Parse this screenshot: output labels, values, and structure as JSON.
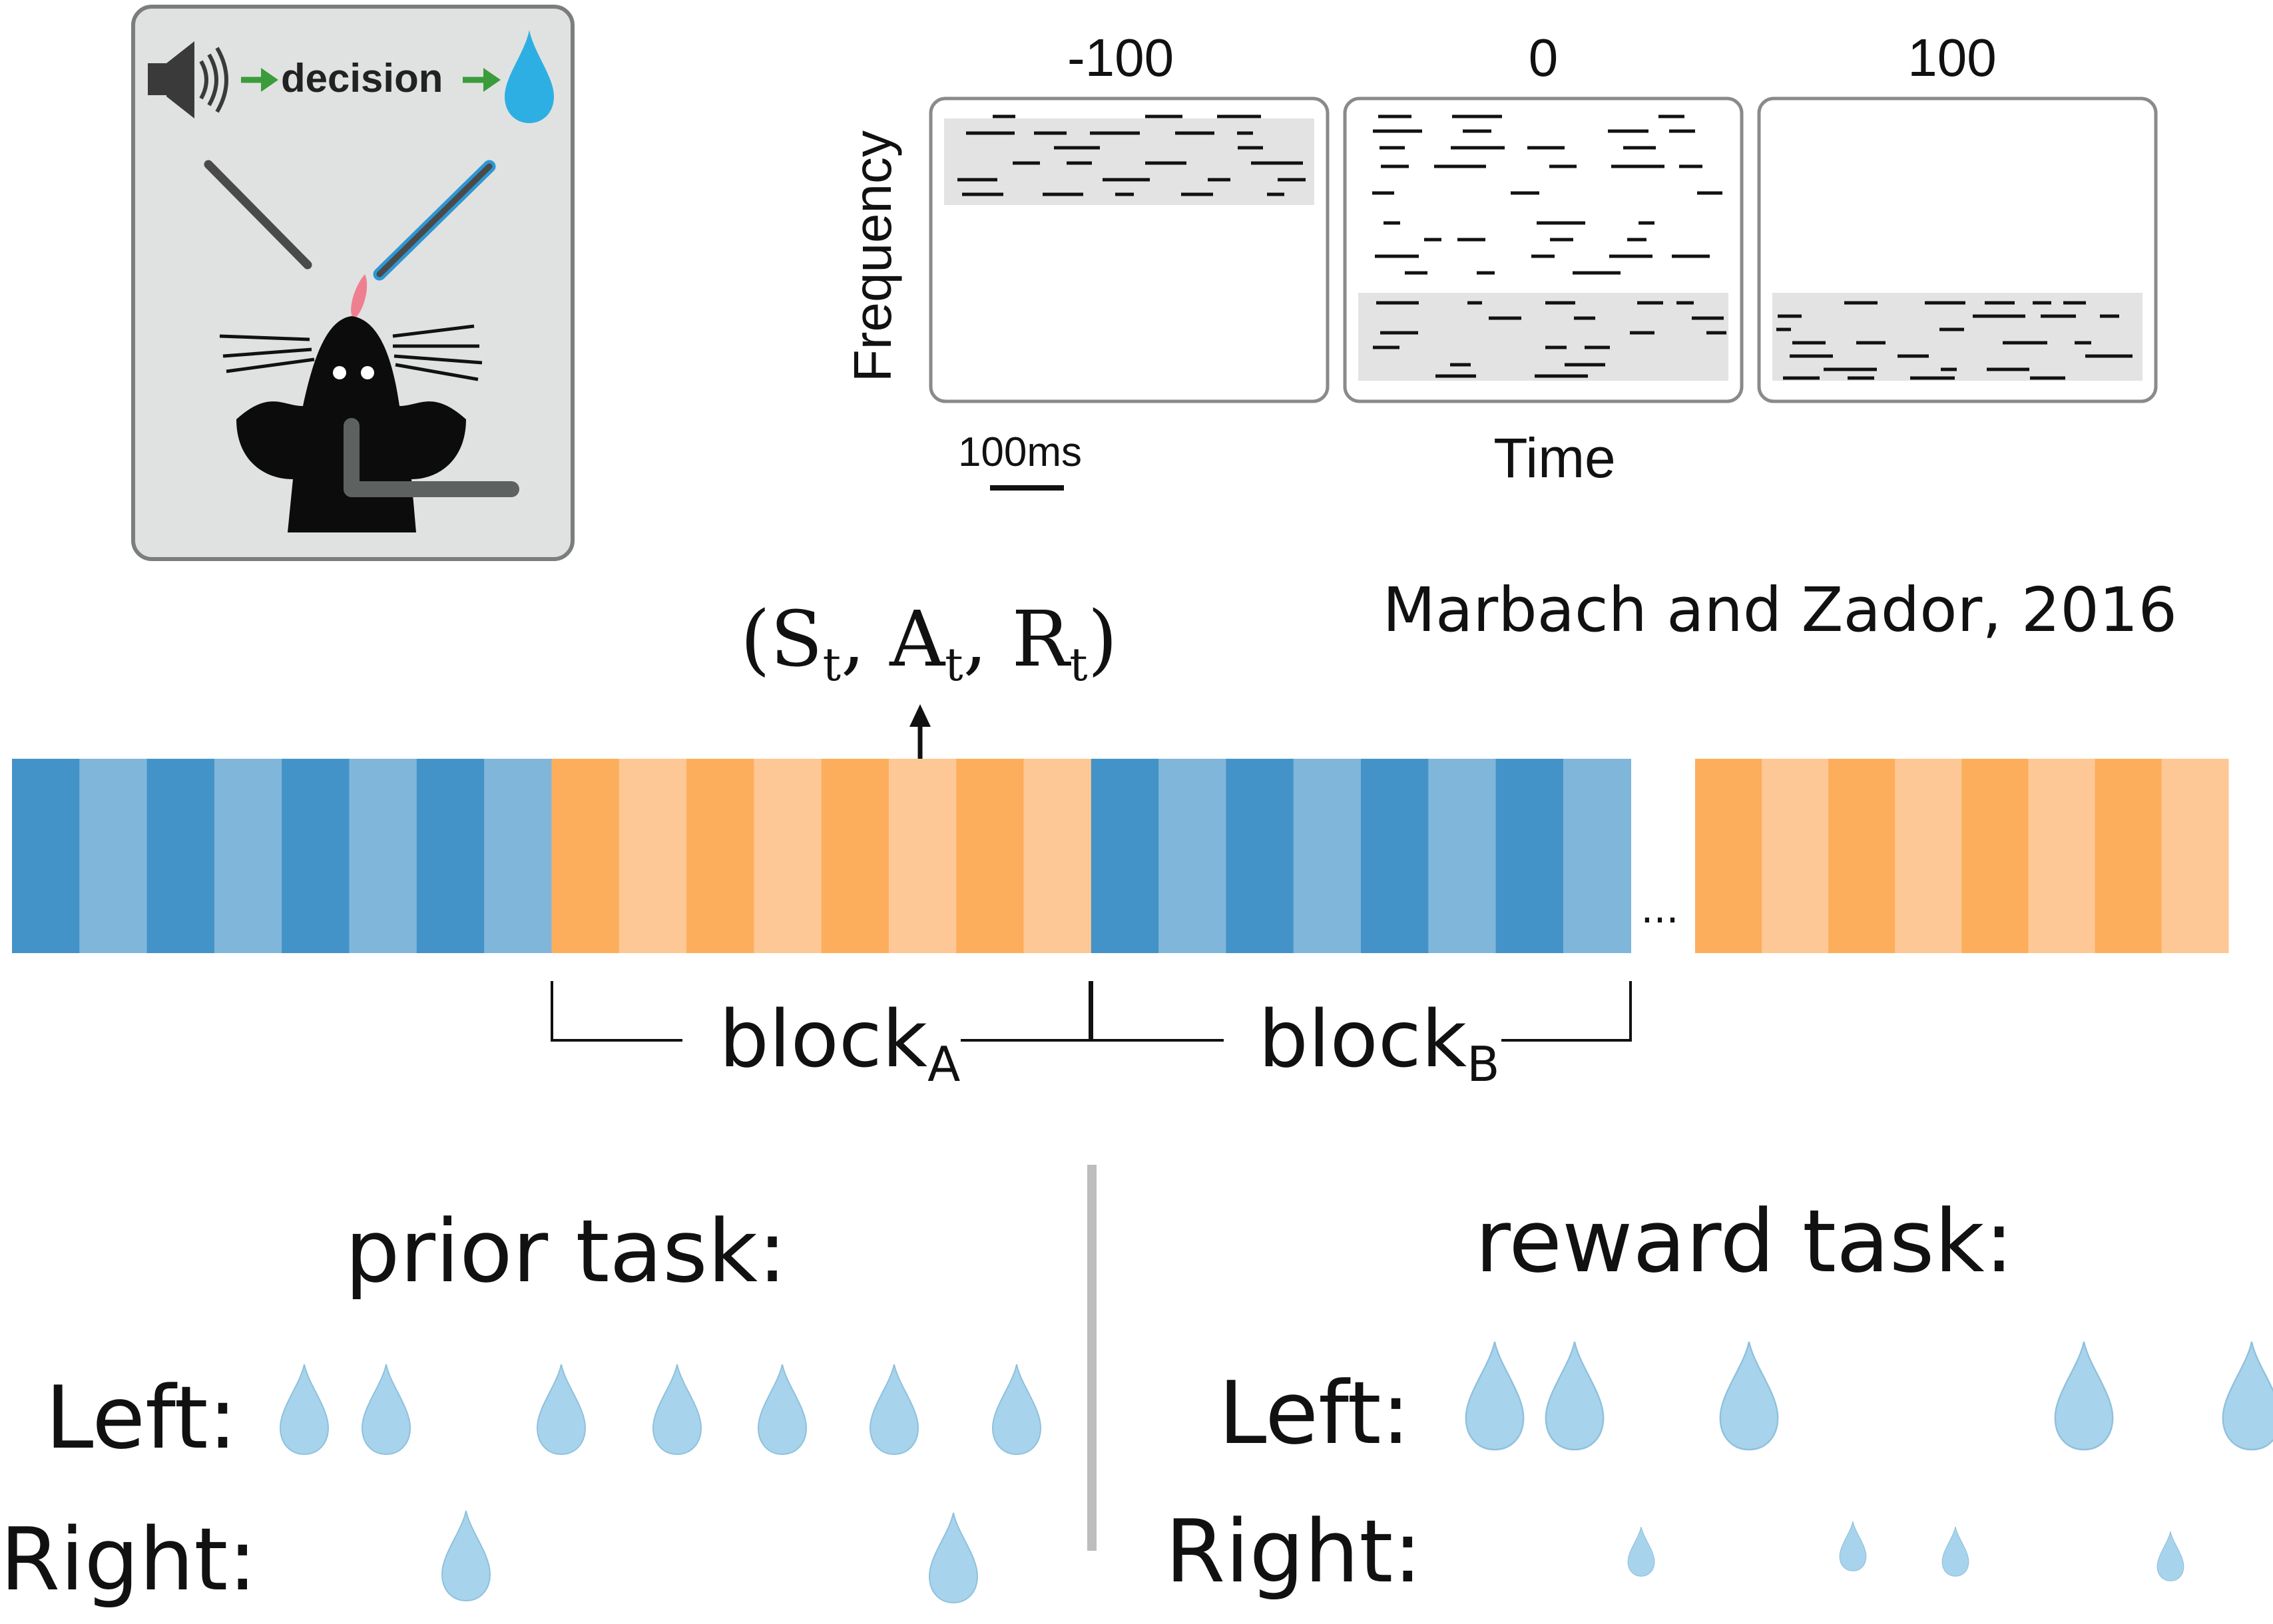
{
  "task_panel": {
    "decision_label": "decision",
    "icons": [
      "speaker-icon",
      "arrow-right-icon",
      "water-drop-icon",
      "mouse-icon",
      "lick-port-icon"
    ]
  },
  "stimulus": {
    "panel_labels": [
      "-100",
      "0",
      "100"
    ],
    "ylabel": "Frequency",
    "xlabel": "Time",
    "scalebar_label": "100ms"
  },
  "citation": "Marbach and Zador, 2016",
  "tuple": {
    "open": "(",
    "s": "S",
    "a": "A",
    "r": "R",
    "sub": "t",
    "comma": ",",
    "close": ")"
  },
  "blocks": {
    "block_word": "block",
    "block_a_sub": "A",
    "block_b_sub": "B",
    "ellipsis": "...",
    "colors": {
      "blue_dark": "#4393c9",
      "blue_light": "#80b6da",
      "orange_dark": "#fdae5c",
      "orange_light": "#fdc895"
    }
  },
  "tasks": {
    "prior_title": "prior task:",
    "reward_title": "reward task:",
    "left_label": "Left:",
    "right_label": "Right:",
    "drop_color": "#a8d3ec"
  }
}
